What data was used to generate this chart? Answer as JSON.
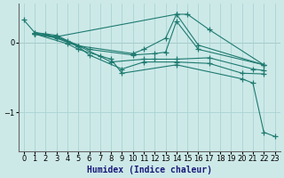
{
  "xlabel": "Humidex (Indice chaleur)",
  "ylabel": "",
  "background_color": "#cce9e8",
  "grid_color": "#aad4d2",
  "line_color": "#1e7a70",
  "xlim": [
    -0.5,
    23.5
  ],
  "ylim": [
    -1.55,
    0.55
  ],
  "yticks": [
    0,
    -1
  ],
  "xticks": [
    0,
    1,
    2,
    3,
    4,
    5,
    6,
    7,
    8,
    9,
    10,
    11,
    12,
    13,
    14,
    15,
    16,
    17,
    18,
    19,
    20,
    21,
    22,
    23
  ],
  "lines": [
    {
      "x": [
        0,
        1,
        3,
        14,
        15,
        17,
        22
      ],
      "y": [
        0.32,
        0.14,
        0.08,
        0.4,
        0.4,
        0.18,
        -0.32
      ]
    },
    {
      "x": [
        1,
        2,
        3,
        5,
        10,
        11,
        13,
        14,
        16,
        22
      ],
      "y": [
        0.14,
        0.12,
        0.1,
        -0.05,
        -0.16,
        -0.1,
        0.06,
        0.4,
        -0.04,
        -0.32
      ]
    },
    {
      "x": [
        1,
        3,
        4,
        6,
        10,
        12,
        13,
        14,
        16,
        22
      ],
      "y": [
        0.12,
        0.08,
        0.02,
        -0.1,
        -0.18,
        -0.16,
        -0.14,
        0.3,
        -0.1,
        -0.32
      ]
    },
    {
      "x": [
        1,
        3,
        5,
        7,
        8,
        11,
        12,
        14,
        17,
        21,
        22
      ],
      "y": [
        0.12,
        0.07,
        -0.05,
        -0.2,
        -0.28,
        -0.24,
        -0.24,
        -0.24,
        -0.22,
        -0.38,
        -0.4
      ]
    },
    {
      "x": [
        1,
        3,
        5,
        6,
        9,
        11,
        14,
        17,
        20,
        22
      ],
      "y": [
        0.12,
        0.06,
        -0.06,
        -0.18,
        -0.38,
        -0.28,
        -0.28,
        -0.3,
        -0.44,
        -0.45
      ]
    },
    {
      "x": [
        1,
        4,
        5,
        8,
        9,
        14,
        20,
        21,
        22,
        23
      ],
      "y": [
        0.12,
        -0.02,
        -0.1,
        -0.24,
        -0.44,
        -0.32,
        -0.52,
        -0.58,
        -1.28,
        -1.34
      ]
    }
  ]
}
